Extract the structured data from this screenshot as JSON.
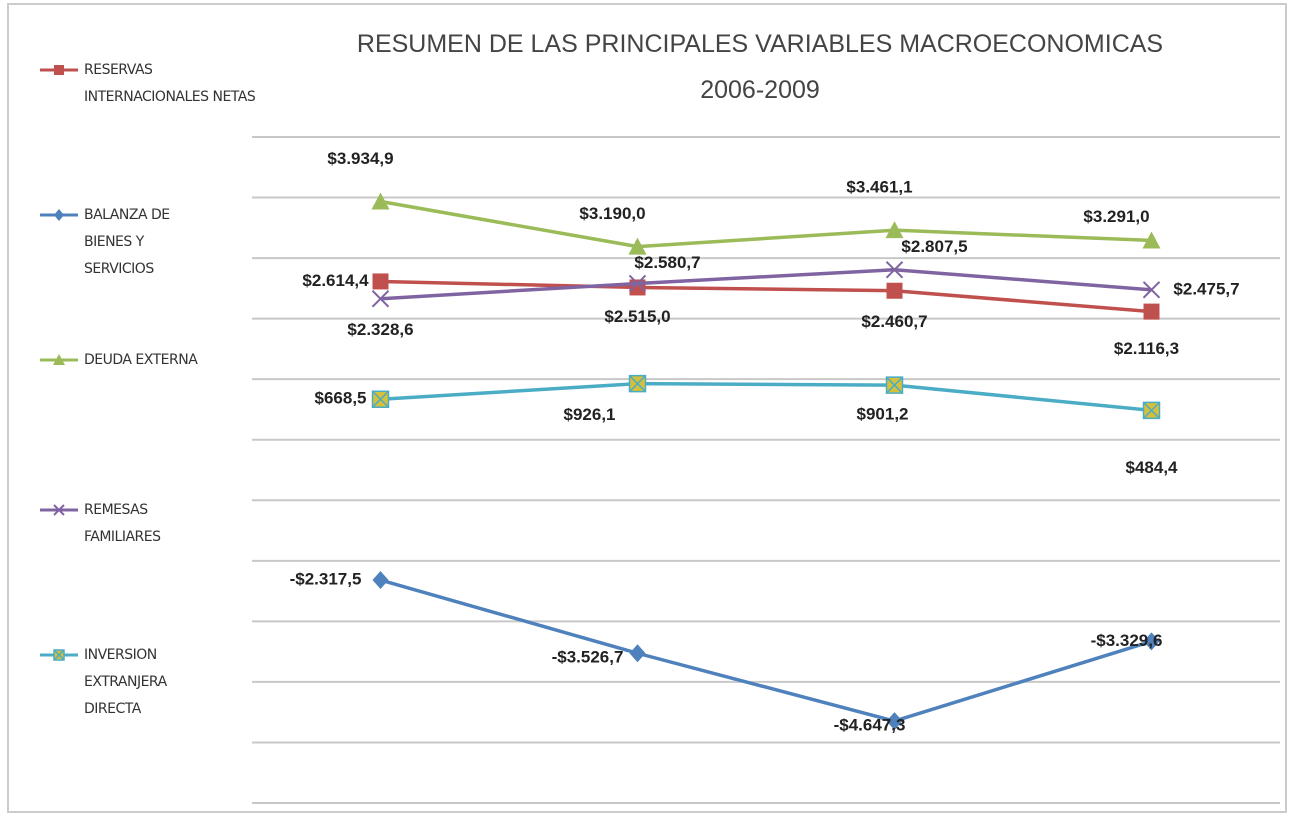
{
  "chart_data": {
    "type": "line",
    "title": "RESUMEN DE LAS PRINCIPALES VARIABLES MACROECONOMICAS",
    "subtitle": "2006-2009",
    "ylim": [
      -6000,
      5000
    ],
    "yticks": [
      -6000,
      -5000,
      -4000,
      -3000,
      -2000,
      -1000,
      0,
      1000,
      2000,
      3000,
      4000,
      5000
    ],
    "grid": true,
    "legend": "left",
    "series": [
      {
        "name": "RESERVAS INTERNACIONALES NETAS",
        "color": "#c0504d",
        "marker": "square",
        "values": [
          2614.4,
          2515.0,
          2460.7,
          2116.3
        ],
        "value_labels": [
          "$2.614,4",
          "$2.515,0",
          "$2.460,7",
          "$2.116,3"
        ]
      },
      {
        "name": "BALANZA DE BIENES Y SERVICIOS",
        "color": "#4f81bd",
        "marker": "diamond",
        "values": [
          -2317.5,
          -3526.7,
          -4647.3,
          -3329.6
        ],
        "value_labels": [
          "-$2.317,5",
          "-$3.526,7",
          "-$4.647,3",
          "-$3.329,6"
        ]
      },
      {
        "name": "DEUDA EXTERNA",
        "color": "#9bbb59",
        "marker": "triangle",
        "values": [
          3934.9,
          3190.0,
          3461.1,
          3291.0
        ],
        "value_labels": [
          "$3.934,9",
          "$3.190,0",
          "$3.461,1",
          "$3.291,0"
        ]
      },
      {
        "name": "REMESAS FAMILIARES",
        "color": "#8064a2",
        "marker": "x",
        "values": [
          2328.6,
          2580.7,
          2807.5,
          2475.7
        ],
        "value_labels": [
          "$2.328,6",
          "$2.580,7",
          "$2.807,5",
          "$2.475,7"
        ]
      },
      {
        "name": "INVERSION EXTRANJERA DIRECTA",
        "color": "#4bacc6",
        "marker": "boxx",
        "values": [
          668.5,
          926.1,
          901.2,
          484.4
        ],
        "value_labels": [
          "$668,5",
          "$926,1",
          "$901,2",
          "$484,4"
        ]
      }
    ]
  }
}
